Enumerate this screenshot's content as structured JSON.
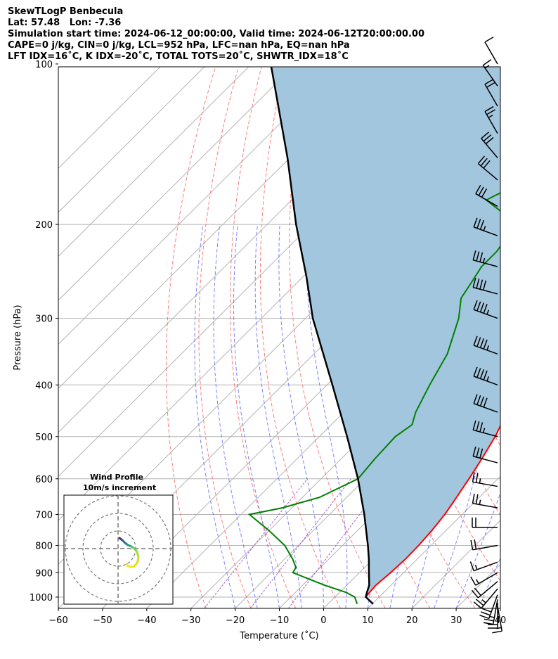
{
  "header": {
    "line1": "SkewTLogP Benbecula",
    "line2": "Lat: 57.48   Lon: -7.36",
    "line3": "Simulation start time: 2024-06-12_00:00:00, Valid time: 2024-06-12T20:00:00.00",
    "line4": "CAPE=0 j/kg, CIN=0 j/kg, LCL=952 hPa, LFC=nan hPa, EQ=nan hPa",
    "line5": "LFT IDX=16˚C, K IDX=-20˚C, TOTAL TOTS=20˚C, SHWTR_IDX=18˚C"
  },
  "colors": {
    "temperature": "#ff0000",
    "dewpoint": "#008000",
    "parcel": "#000000",
    "cape_fill": "#a3c6df",
    "dry_adiabat": "#ff6464",
    "moist_adiabat": "#5a64ff",
    "mixing_ratio": "#9b4fc9",
    "isotherm": "#b3b3b3",
    "isobar": "#b3b3b3"
  },
  "chart_data": {
    "type": "line",
    "subtype": "skew-t log-p",
    "xlabel": "Temperature (˚C)",
    "ylabel": "Pressure (hPa)",
    "xlim": [
      -60,
      40
    ],
    "ylim": [
      1050,
      100
    ],
    "x_ticks": [
      -60,
      -50,
      -40,
      -30,
      -20,
      -10,
      0,
      10,
      20,
      30,
      40
    ],
    "y_ticks": [
      100,
      200,
      300,
      400,
      500,
      600,
      700,
      800,
      900,
      1000
    ],
    "grid": true,
    "series": [
      {
        "pressure": [
          1030,
          1000,
          980,
          950,
          900,
          850,
          800,
          750,
          700,
          650,
          600,
          550,
          500,
          450,
          400,
          350,
          300,
          290,
          275,
          260,
          245,
          235,
          225,
          210,
          200,
          185,
          170,
          160,
          145,
          130,
          115,
          100
        ],
        "values": [
          10.2,
          7,
          6.8,
          6.6,
          7.1,
          7.4,
          7.3,
          6.9,
          6.2,
          5.0,
          3.6,
          2.0,
          0.0,
          -2.8,
          -5.9,
          -9.6,
          -14.2,
          -15.5,
          -18.0,
          -21.0,
          -24.0,
          -22.5,
          -19.5,
          -16.5,
          -15.5,
          -14.8,
          -15.8,
          -17.7,
          -21.2,
          -24.0,
          -28.0,
          -31.0
        ]
      },
      {
        "pressure": [
          1030,
          1000,
          980,
          950,
          900,
          880,
          850,
          800,
          750,
          700,
          680,
          650,
          600,
          550,
          500,
          475,
          450,
          400,
          350,
          300,
          275,
          260,
          240,
          225,
          210,
          200,
          190,
          180,
          165,
          155,
          140,
          125,
          100
        ],
        "values": [
          6.6,
          4.5,
          1.5,
          -5.0,
          -15.0,
          -15.5,
          -18.0,
          -23.0,
          -30.0,
          -38.0,
          -32.0,
          -26.0,
          -21.5,
          -22.2,
          -22.6,
          -21.5,
          -23.5,
          -26.5,
          -29.5,
          -35.0,
          -39.0,
          -40.0,
          -41.5,
          -41.5,
          -42.5,
          -44.0,
          -49.0,
          -55.5,
          -51.0,
          -54.0,
          -56.0,
          -61.0,
          -74.0
        ]
      },
      {
        "pressure": [
          1030,
          1000,
          980,
          950,
          900,
          850,
          800,
          700,
          600,
          500,
          400,
          300,
          250,
          200,
          150,
          100
        ],
        "values": [
          10.2,
          7.0,
          6.2,
          5.1,
          2.2,
          -0.8,
          -4.2,
          -12.0,
          -21.5,
          -33.5,
          -48.5,
          -68.0,
          -79.0,
          -93.0,
          -110.0,
          -135.0
        ]
      }
    ],
    "hodograph": {
      "title": "Wind Profile",
      "subtitle": "10m/s increment"
    },
    "wind_barbs": {
      "pressure": [
        1040,
        1025,
        1010,
        990,
        965,
        935,
        900,
        860,
        800,
        740,
        680,
        620,
        560,
        500,
        450,
        400,
        350,
        300,
        270,
        240,
        210,
        185,
        165,
        150,
        135,
        120,
        110,
        100
      ],
      "direction": [
        170,
        180,
        190,
        200,
        220,
        230,
        240,
        250,
        260,
        270,
        280,
        280,
        285,
        285,
        290,
        290,
        290,
        290,
        285,
        285,
        290,
        300,
        310,
        320,
        330,
        330,
        325,
        330
      ],
      "speed_kt": [
        15,
        20,
        25,
        30,
        25,
        20,
        15,
        15,
        20,
        20,
        25,
        25,
        30,
        35,
        40,
        45,
        45,
        45,
        40,
        35,
        35,
        30,
        30,
        30,
        25,
        20,
        15,
        10
      ]
    }
  }
}
